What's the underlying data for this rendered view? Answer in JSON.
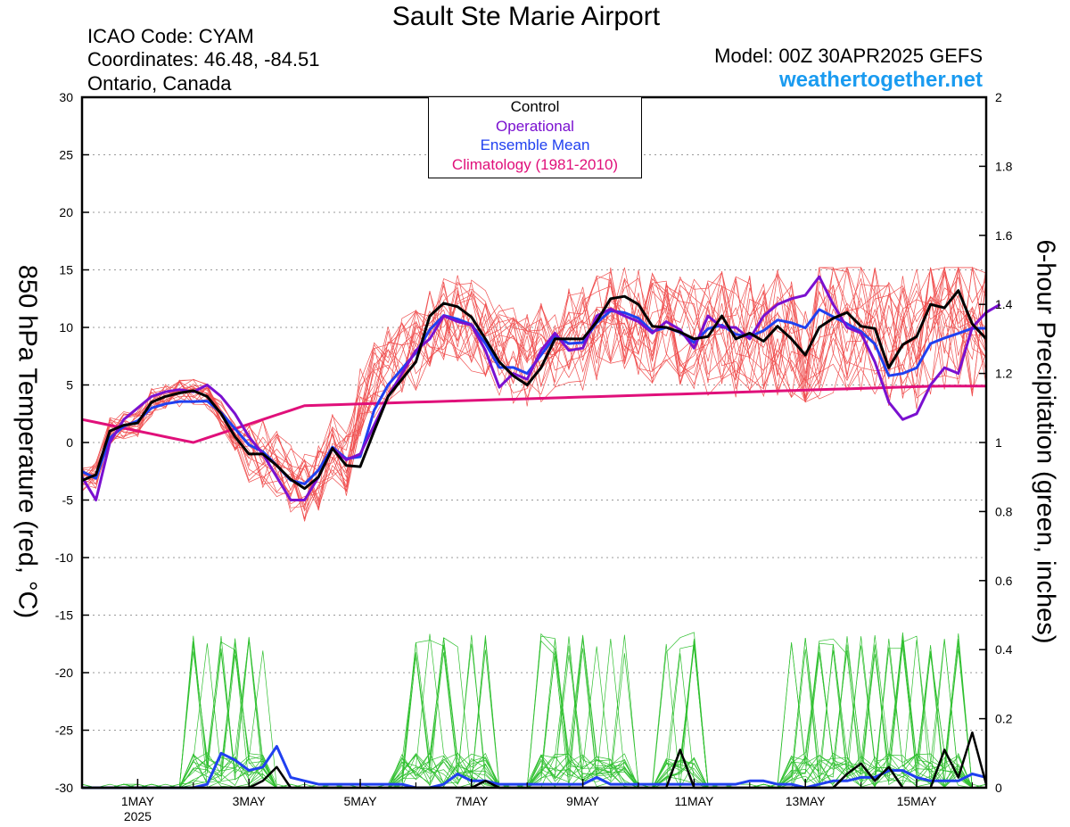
{
  "header": {
    "title": "Sault Ste Marie Airport",
    "icao": "ICAO Code: CYAM",
    "coordinates": "Coordinates: 46.48, -84.51",
    "region": "Ontario, Canada",
    "model": "Model: 00Z 30APR2025 GEFS",
    "site": "weathertogether.net"
  },
  "legend": {
    "control": "Control",
    "operational": "Operational",
    "ensemble_mean": "Ensemble Mean",
    "climatology": "Climatology (1981-2010)"
  },
  "colors": {
    "control": "#000000",
    "operational": "#7a10d0",
    "ensemble_mean": "#2040f0",
    "climatology": "#e0107a",
    "temp_members": "#f05050",
    "precip_members": "#30c030",
    "site": "#1a9bf0"
  },
  "chart_data": {
    "type": "line",
    "title": "Sault Ste Marie Airport",
    "ylabel": "850 hPa Temperature (red, °C)",
    "y2label": "6-hour Precipitation (green, inches)",
    "ylim": [
      -30,
      30
    ],
    "y2lim": [
      0,
      2
    ],
    "y_ticks": [
      "30",
      "25",
      "20",
      "15",
      "10",
      "5",
      "0",
      "-5",
      "-10",
      "-15",
      "-20",
      "-25",
      "-30"
    ],
    "y2_ticks": [
      "2",
      "1.8",
      "1.6",
      "1.4",
      "1.2",
      "1",
      "0.8",
      "0.6",
      "0.4",
      "0.2",
      "0"
    ],
    "x_ticks": [
      {
        "day": 1,
        "label": "1MAY",
        "sub": "2025"
      },
      {
        "day": 3,
        "label": "3MAY",
        "sub": ""
      },
      {
        "day": 5,
        "label": "5MAY",
        "sub": ""
      },
      {
        "day": 7,
        "label": "7MAY",
        "sub": ""
      },
      {
        "day": 9,
        "label": "9MAY",
        "sub": ""
      },
      {
        "day": 11,
        "label": "11MAY",
        "sub": ""
      },
      {
        "day": 13,
        "label": "13MAY",
        "sub": ""
      },
      {
        "day": 15,
        "label": "15MAY",
        "sub": ""
      }
    ],
    "x_start_day": 0.0,
    "x_step_days": 0.25,
    "grid": true,
    "legend_position": "top-center",
    "temperature": {
      "control": [
        -3.3,
        -2.8,
        1.0,
        1.5,
        1.7,
        3.5,
        4.0,
        4.3,
        4.5,
        4.0,
        2.5,
        0.5,
        -1.0,
        -1.0,
        -2.0,
        -3.2,
        -4.0,
        -3.0,
        -0.5,
        -2.0,
        -2.1,
        1.0,
        4.0,
        5.5,
        7.0,
        11.0,
        12.1,
        11.8,
        10.9,
        9.0,
        7.0,
        5.8,
        5.0,
        6.5,
        9.0,
        9.0,
        9.0,
        10.5,
        12.5,
        12.7,
        12.0,
        10.1,
        10.0,
        9.6,
        9.0,
        9.2,
        11.0,
        9.0,
        9.5,
        8.8,
        10.1,
        9.0,
        7.6,
        10.0,
        10.8,
        11.3,
        10.1,
        9.9,
        6.5,
        8.5,
        9.2,
        12.0,
        11.7,
        13.2,
        10.3,
        9.0
      ],
      "operational": [
        -3.0,
        -5.0,
        0.0,
        2.0,
        3.0,
        4.0,
        4.4,
        4.6,
        4.4,
        5.0,
        4.0,
        2.5,
        0.5,
        -1.0,
        -3.0,
        -5.0,
        -5.0,
        -3.0,
        -0.5,
        -1.5,
        -1.0,
        1.5,
        4.0,
        6.0,
        8.0,
        9.0,
        11.0,
        10.5,
        10.2,
        8.0,
        4.8,
        6.0,
        5.5,
        8.0,
        9.5,
        8.0,
        8.2,
        11.0,
        11.6,
        11.0,
        10.5,
        9.5,
        10.5,
        9.8,
        8.2,
        11.0,
        10.0,
        10.0,
        9.0,
        11.0,
        12.0,
        12.5,
        12.8,
        14.4,
        12.0,
        10.0,
        9.5,
        7.0,
        3.5,
        2.0,
        2.5,
        5.0,
        6.5,
        6.0,
        10.0,
        11.3,
        12.0
      ]
    },
    "precip_series": {
      "control": [
        0,
        0,
        0,
        0,
        0,
        0,
        0,
        0,
        0,
        0,
        0,
        0,
        0,
        0.02,
        0.06,
        0,
        0,
        0,
        0,
        0,
        0,
        0,
        0,
        0,
        0,
        0,
        0,
        0,
        0,
        0.02,
        0,
        0,
        0,
        0,
        0,
        0,
        0,
        0,
        0,
        0,
        0,
        0,
        0,
        0.11,
        0,
        0,
        0,
        0,
        0,
        0,
        0,
        0,
        0,
        0,
        0,
        0.04,
        0.07,
        0.02,
        0.06,
        0,
        0,
        0,
        0.11,
        0.03,
        0.16,
        0.01
      ],
      "ensemble_mean": [
        0,
        0,
        0,
        0,
        0,
        0,
        0,
        0,
        0,
        0.01,
        0.1,
        0.08,
        0.05,
        0.06,
        0.12,
        0.03,
        0.02,
        0.01,
        0.01,
        0.01,
        0.01,
        0.01,
        0.01,
        0.01,
        0,
        0,
        0.01,
        0.04,
        0.02,
        0.02,
        0.01,
        0.01,
        0.01,
        0.01,
        0.01,
        0.01,
        0.01,
        0.03,
        0.01,
        0.01,
        0.01,
        0.01,
        0.01,
        0.01,
        0.01,
        0.01,
        0.01,
        0.01,
        0.02,
        0.02,
        0.01,
        0.01,
        0,
        0.01,
        0.02,
        0.02,
        0.03,
        0.03,
        0.05,
        0.05,
        0.03,
        0.02,
        0.02,
        0.02,
        0.04,
        0.03
      ]
    }
  }
}
